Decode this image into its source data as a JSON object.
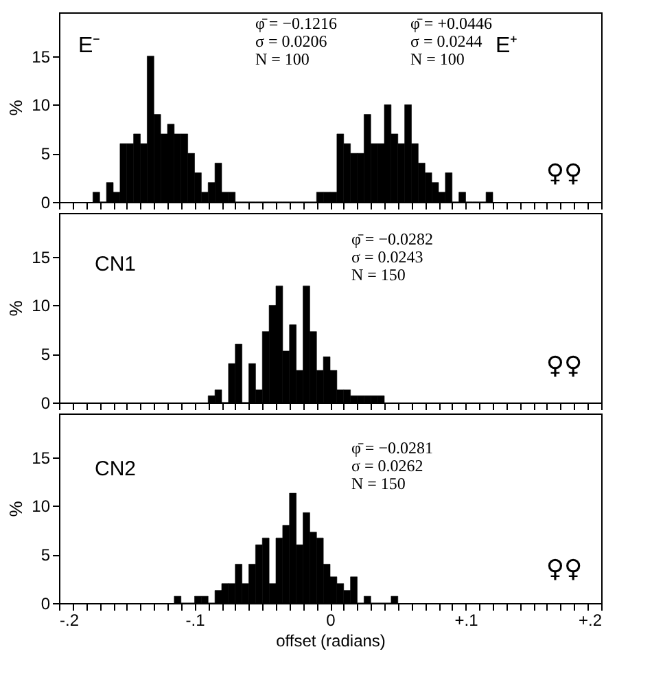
{
  "chart_data": [
    {
      "type": "histogram",
      "color": "#000000",
      "ylabel": "%",
      "tick_labels": "y",
      "xlim": [
        -0.2,
        0.2
      ],
      "ylim": [
        0,
        19.5
      ],
      "yticks": [
        0,
        5,
        10,
        15
      ],
      "xticks": [
        -0.2,
        {
          "value": -0.19,
          "label": null
        },
        {
          "value": -0.18,
          "label": null
        },
        {
          "value": -0.17,
          "label": null
        },
        {
          "value": -0.16,
          "label": null
        },
        {
          "value": -0.15,
          "label": null
        },
        {
          "value": -0.14,
          "label": null
        },
        {
          "value": -0.13,
          "label": null
        },
        {
          "value": -0.12,
          "label": null
        },
        {
          "value": -0.11,
          "label": null
        },
        -0.1,
        {
          "value": -0.09,
          "label": null
        },
        {
          "value": -0.08,
          "label": null
        },
        {
          "value": -0.07,
          "label": null
        },
        {
          "value": -0.06,
          "label": null
        },
        {
          "value": -0.05,
          "label": null
        },
        {
          "value": -0.04,
          "label": null
        },
        {
          "value": -0.03,
          "label": null
        },
        {
          "value": -0.02,
          "label": null
        },
        {
          "value": -0.01,
          "label": null
        },
        0,
        {
          "value": 0.01,
          "label": null
        },
        {
          "value": 0.02,
          "label": null
        },
        {
          "value": 0.03,
          "label": null
        },
        {
          "value": 0.04,
          "label": null
        },
        {
          "value": 0.05,
          "label": null
        },
        {
          "value": 0.06,
          "label": null
        },
        {
          "value": 0.07,
          "label": null
        },
        {
          "value": 0.08,
          "label": null
        },
        {
          "value": 0.09,
          "label": null
        },
        0.1,
        {
          "value": 0.11,
          "label": null
        },
        {
          "value": 0.12,
          "label": null
        },
        {
          "value": 0.13,
          "label": null
        },
        {
          "value": 0.14,
          "label": null
        },
        {
          "value": 0.15,
          "label": null
        },
        {
          "value": 0.16,
          "label": null
        },
        {
          "value": 0.17,
          "label": null
        },
        {
          "value": 0.18,
          "label": null
        },
        {
          "value": 0.19,
          "label": null
        },
        0.2
      ],
      "bins": [
        -0.175,
        -0.17,
        -0.165,
        -0.16,
        -0.155,
        -0.15,
        -0.145,
        -0.14,
        -0.135,
        -0.13,
        -0.125,
        -0.12,
        -0.115,
        -0.11,
        -0.105,
        -0.1,
        -0.095,
        -0.09,
        -0.085,
        -0.08,
        -0.075,
        -0.07,
        -0.065,
        -0.06,
        -0.055,
        -0.05,
        -0.045,
        -0.04,
        -0.035,
        -0.03,
        -0.025,
        -0.02,
        -0.015,
        -0.01,
        -0.005,
        0,
        0.005,
        0.01,
        0.015,
        0.02,
        0.025,
        0.03,
        0.035,
        0.04,
        0.045,
        0.05,
        0.055,
        0.06,
        0.065,
        0.07,
        0.075,
        0.08,
        0.085,
        0.09,
        0.095,
        0.1,
        0.105,
        0.11,
        0.115,
        0.12
      ],
      "values": [
        1,
        0,
        2,
        1,
        6,
        6,
        7,
        6,
        15,
        9,
        7,
        8,
        7,
        7,
        5,
        3,
        1,
        2,
        4,
        1,
        1,
        0,
        0,
        0,
        0,
        0,
        0,
        0,
        0,
        0,
        0,
        0,
        0,
        1,
        1,
        1,
        7,
        6,
        5,
        5,
        9,
        6,
        6,
        10,
        7,
        6,
        10,
        6,
        4,
        3,
        2,
        1,
        3,
        0,
        1,
        0,
        0,
        0,
        1
      ],
      "annotations": [
        "φ̄ = −0.1216\nσ = 0.0206\nN = 100",
        "φ̄ = +0.0446\nσ = 0.0244\nN = 100",
        "E⁻",
        "E⁺",
        "♀♀"
      ]
    },
    {
      "type": "histogram",
      "color": "#000000",
      "ylabel": "%",
      "tick_labels": "y",
      "xlim": [
        -0.2,
        0.2
      ],
      "ylim": [
        0,
        19.5
      ],
      "yticks": [
        0,
        5,
        10,
        15
      ],
      "xticks": [
        -0.2,
        {
          "value": -0.19,
          "label": null
        },
        {
          "value": -0.18,
          "label": null
        },
        {
          "value": -0.17,
          "label": null
        },
        {
          "value": -0.16,
          "label": null
        },
        {
          "value": -0.15,
          "label": null
        },
        {
          "value": -0.14,
          "label": null
        },
        {
          "value": -0.13,
          "label": null
        },
        {
          "value": -0.12,
          "label": null
        },
        {
          "value": -0.11,
          "label": null
        },
        -0.1,
        {
          "value": -0.09,
          "label": null
        },
        {
          "value": -0.08,
          "label": null
        },
        {
          "value": -0.07,
          "label": null
        },
        {
          "value": -0.06,
          "label": null
        },
        {
          "value": -0.05,
          "label": null
        },
        {
          "value": -0.04,
          "label": null
        },
        {
          "value": -0.03,
          "label": null
        },
        {
          "value": -0.02,
          "label": null
        },
        {
          "value": -0.01,
          "label": null
        },
        0,
        {
          "value": 0.01,
          "label": null
        },
        {
          "value": 0.02,
          "label": null
        },
        {
          "value": 0.03,
          "label": null
        },
        {
          "value": 0.04,
          "label": null
        },
        {
          "value": 0.05,
          "label": null
        },
        {
          "value": 0.06,
          "label": null
        },
        {
          "value": 0.07,
          "label": null
        },
        {
          "value": 0.08,
          "label": null
        },
        {
          "value": 0.09,
          "label": null
        },
        0.1,
        {
          "value": 0.11,
          "label": null
        },
        {
          "value": 0.12,
          "label": null
        },
        {
          "value": 0.13,
          "label": null
        },
        {
          "value": 0.14,
          "label": null
        },
        {
          "value": 0.15,
          "label": null
        },
        {
          "value": 0.16,
          "label": null
        },
        {
          "value": 0.17,
          "label": null
        },
        {
          "value": 0.18,
          "label": null
        },
        {
          "value": 0.19,
          "label": null
        },
        0.2
      ],
      "bins": [
        -0.09,
        -0.085,
        -0.08,
        -0.075,
        -0.07,
        -0.065,
        -0.06,
        -0.055,
        -0.05,
        -0.045,
        -0.04,
        -0.035,
        -0.03,
        -0.025,
        -0.02,
        -0.015,
        -0.01,
        -0.005,
        0,
        0.005,
        0.01,
        0.015,
        0.02,
        0.025,
        0.03,
        0.035,
        0.04
      ],
      "values": [
        0.7,
        1.3,
        0,
        4,
        6,
        0,
        4,
        1.3,
        7.3,
        10,
        12,
        5.3,
        8,
        3.3,
        12,
        7.3,
        3.3,
        4.7,
        3.3,
        1.3,
        1.3,
        0.7,
        0.7,
        0.7,
        0.7,
        0.7
      ],
      "annotations": [
        "φ̄ = −0.0282\nσ = 0.0243\nN = 150",
        "CN1",
        "♀♀"
      ]
    },
    {
      "type": "histogram",
      "color": "#000000",
      "ylabel": "%",
      "xlabel": "offset (radians)",
      "xlim": [
        -0.2,
        0.2
      ],
      "ylim": [
        0,
        19.5
      ],
      "yticks": [
        0,
        5,
        10,
        15
      ],
      "xticks": [
        {
          "value": -0.2,
          "label": "-.2"
        },
        {
          "value": -0.19,
          "label": null
        },
        {
          "value": -0.18,
          "label": null
        },
        {
          "value": -0.17,
          "label": null
        },
        {
          "value": -0.16,
          "label": null
        },
        {
          "value": -0.15,
          "label": null
        },
        {
          "value": -0.14,
          "label": null
        },
        {
          "value": -0.13,
          "label": null
        },
        {
          "value": -0.12,
          "label": null
        },
        {
          "value": -0.11,
          "label": null
        },
        {
          "value": -0.1,
          "label": "-.1"
        },
        {
          "value": -0.09,
          "label": null
        },
        {
          "value": -0.08,
          "label": null
        },
        {
          "value": -0.07,
          "label": null
        },
        {
          "value": -0.06,
          "label": null
        },
        {
          "value": -0.05,
          "label": null
        },
        {
          "value": -0.04,
          "label": null
        },
        {
          "value": -0.03,
          "label": null
        },
        {
          "value": -0.02,
          "label": null
        },
        {
          "value": -0.01,
          "label": null
        },
        0,
        {
          "value": 0.01,
          "label": null
        },
        {
          "value": 0.02,
          "label": null
        },
        {
          "value": 0.03,
          "label": null
        },
        {
          "value": 0.04,
          "label": null
        },
        {
          "value": 0.05,
          "label": null
        },
        {
          "value": 0.06,
          "label": null
        },
        {
          "value": 0.07,
          "label": null
        },
        {
          "value": 0.08,
          "label": null
        },
        {
          "value": 0.09,
          "label": null
        },
        {
          "value": 0.1,
          "label": "+.1"
        },
        {
          "value": 0.11,
          "label": null
        },
        {
          "value": 0.12,
          "label": null
        },
        {
          "value": 0.13,
          "label": null
        },
        {
          "value": 0.14,
          "label": null
        },
        {
          "value": 0.15,
          "label": null
        },
        {
          "value": 0.16,
          "label": null
        },
        {
          "value": 0.17,
          "label": null
        },
        {
          "value": 0.18,
          "label": null
        },
        {
          "value": 0.19,
          "label": null
        },
        {
          "value": 0.2,
          "label": "+.2"
        }
      ],
      "bins": [
        -0.115,
        -0.11,
        -0.105,
        -0.1,
        -0.095,
        -0.09,
        -0.085,
        -0.08,
        -0.075,
        -0.07,
        -0.065,
        -0.06,
        -0.055,
        -0.05,
        -0.045,
        -0.04,
        -0.035,
        -0.03,
        -0.025,
        -0.02,
        -0.015,
        -0.01,
        -0.005,
        0,
        0.005,
        0.01,
        0.015,
        0.02,
        0.025,
        0.03,
        0.035,
        0.04,
        0.045,
        0.05
      ],
      "values": [
        0.7,
        0,
        0,
        0.7,
        0.7,
        0,
        1.3,
        2,
        2,
        4,
        2,
        4,
        6,
        6.7,
        2,
        6.7,
        8,
        11.3,
        6,
        9.3,
        7.3,
        6.7,
        4,
        2.7,
        2,
        1.3,
        2.7,
        0,
        0.7,
        0,
        0,
        0,
        0.7
      ],
      "annotations": [
        "φ̄ = −0.0281\nσ = 0.0262\nN = 150",
        "CN2",
        "♀♀"
      ]
    }
  ]
}
